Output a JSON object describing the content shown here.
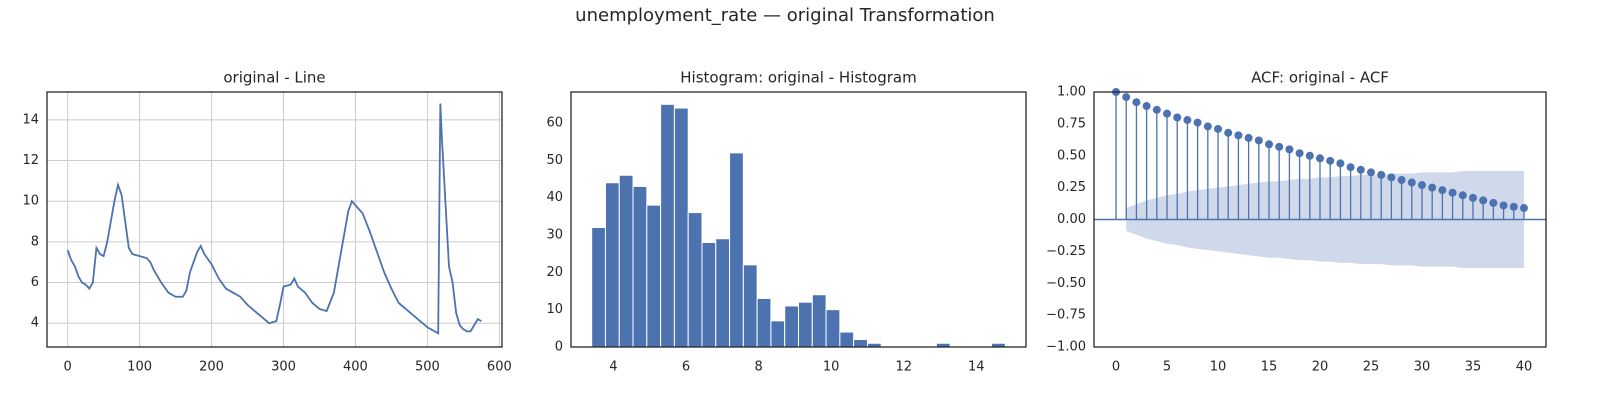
{
  "title": "unemployment_rate — original Transformation",
  "chart_data": [
    {
      "type": "line",
      "title": "original - Line",
      "color": "#4c72b0",
      "grid": true,
      "x": [
        0,
        5,
        10,
        15,
        20,
        25,
        30,
        35,
        40,
        45,
        50,
        55,
        60,
        65,
        70,
        75,
        80,
        85,
        90,
        100,
        110,
        115,
        120,
        130,
        140,
        150,
        160,
        165,
        170,
        180,
        185,
        190,
        200,
        210,
        220,
        230,
        240,
        250,
        260,
        270,
        280,
        290,
        295,
        300,
        310,
        315,
        320,
        330,
        340,
        350,
        360,
        370,
        380,
        390,
        395,
        400,
        410,
        420,
        430,
        440,
        450,
        460,
        470,
        480,
        490,
        500,
        510,
        515,
        518,
        520,
        525,
        530,
        535,
        540,
        545,
        550,
        555,
        560,
        565,
        570,
        575
      ],
      "values": [
        7.6,
        7.1,
        6.8,
        6.3,
        6.0,
        5.9,
        5.7,
        6.0,
        7.7,
        7.4,
        7.3,
        8.0,
        9.0,
        10.0,
        10.8,
        10.3,
        9.0,
        7.7,
        7.4,
        7.3,
        7.2,
        7.0,
        6.6,
        6.0,
        5.5,
        5.3,
        5.3,
        5.6,
        6.5,
        7.5,
        7.8,
        7.4,
        6.9,
        6.2,
        5.7,
        5.5,
        5.3,
        4.9,
        4.6,
        4.3,
        4.0,
        4.1,
        4.9,
        5.8,
        5.9,
        6.2,
        5.8,
        5.5,
        5.0,
        4.7,
        4.6,
        5.5,
        7.5,
        9.5,
        10.0,
        9.8,
        9.4,
        8.5,
        7.5,
        6.5,
        5.7,
        5.0,
        4.7,
        4.4,
        4.1,
        3.8,
        3.6,
        3.5,
        14.8,
        13.2,
        10.0,
        6.8,
        6.0,
        4.5,
        3.9,
        3.7,
        3.6,
        3.6,
        3.9,
        4.2,
        4.1
      ],
      "xlim": [
        -28.7,
        603.7
      ],
      "ylim": [
        2.83,
        15.37
      ],
      "xticks": [
        0,
        100,
        200,
        300,
        400,
        500,
        600
      ],
      "yticks": [
        4,
        6,
        8,
        10,
        12,
        14
      ]
    },
    {
      "type": "histogram",
      "title": "Histogram: original - Histogram",
      "color": "#4c72b0",
      "grid": false,
      "bins": [
        3.4,
        3.78,
        4.16,
        4.54,
        4.92,
        5.3,
        5.68,
        6.06,
        6.44,
        6.82,
        7.2,
        7.58,
        7.96,
        8.34,
        8.72,
        9.1,
        9.48,
        9.86,
        10.24,
        10.62,
        11.0,
        11.38,
        11.76,
        12.14,
        12.52,
        12.9,
        13.28,
        13.66,
        14.04,
        14.42,
        14.8
      ],
      "values": [
        32,
        44,
        46,
        43,
        38,
        65,
        64,
        36,
        28,
        29,
        52,
        22,
        13,
        7,
        11,
        12,
        14,
        10,
        4,
        2,
        1,
        0,
        0,
        0,
        0,
        1,
        0,
        0,
        0,
        1
      ],
      "xlim": [
        2.83,
        15.37
      ],
      "ylim": [
        0,
        68.3
      ],
      "xticks": [
        4,
        6,
        8,
        10,
        12,
        14
      ],
      "yticks": [
        0,
        10,
        20,
        30,
        40,
        50,
        60
      ]
    },
    {
      "type": "acf",
      "title": "ACF: original - ACF",
      "color": "#4c72b0",
      "band_color": "#d0d9ea",
      "grid": false,
      "x": [
        0,
        1,
        2,
        3,
        4,
        5,
        6,
        7,
        8,
        9,
        10,
        11,
        12,
        13,
        14,
        15,
        16,
        17,
        18,
        19,
        20,
        21,
        22,
        23,
        24,
        25,
        26,
        27,
        28,
        29,
        30,
        31,
        32,
        33,
        34,
        35,
        36,
        37,
        38,
        39,
        40
      ],
      "values": [
        1.0,
        0.96,
        0.92,
        0.89,
        0.86,
        0.83,
        0.8,
        0.78,
        0.76,
        0.73,
        0.71,
        0.68,
        0.66,
        0.64,
        0.62,
        0.59,
        0.57,
        0.55,
        0.52,
        0.5,
        0.48,
        0.46,
        0.44,
        0.41,
        0.39,
        0.37,
        0.35,
        0.33,
        0.31,
        0.29,
        0.27,
        0.25,
        0.23,
        0.21,
        0.19,
        0.17,
        0.15,
        0.13,
        0.11,
        0.1,
        0.09
      ],
      "band": [
        null,
        0.09,
        0.12,
        0.15,
        0.17,
        0.19,
        0.2,
        0.22,
        0.23,
        0.24,
        0.25,
        0.26,
        0.27,
        0.28,
        0.29,
        0.3,
        0.3,
        0.31,
        0.32,
        0.32,
        0.33,
        0.33,
        0.34,
        0.34,
        0.35,
        0.35,
        0.35,
        0.36,
        0.36,
        0.36,
        0.37,
        0.37,
        0.37,
        0.37,
        0.38,
        0.38,
        0.38,
        0.38,
        0.38,
        0.38,
        0.38
      ],
      "xlim": [
        -2.16,
        42.16
      ],
      "ylim": [
        -1,
        1
      ],
      "xticks": [
        0,
        5,
        10,
        15,
        20,
        25,
        30,
        35,
        40
      ],
      "yticks": [
        {
          "value": -1,
          "label": "−1.00"
        },
        {
          "value": -0.75,
          "label": "−0.75"
        },
        {
          "value": -0.5,
          "label": "−0.50"
        },
        {
          "value": -0.25,
          "label": "−0.25"
        },
        {
          "value": 0,
          "label": "0.00"
        },
        {
          "value": 0.25,
          "label": "0.25"
        },
        {
          "value": 0.5,
          "label": "0.50"
        },
        {
          "value": 0.75,
          "label": "0.75"
        },
        {
          "value": 1,
          "label": "1.00"
        }
      ]
    }
  ]
}
